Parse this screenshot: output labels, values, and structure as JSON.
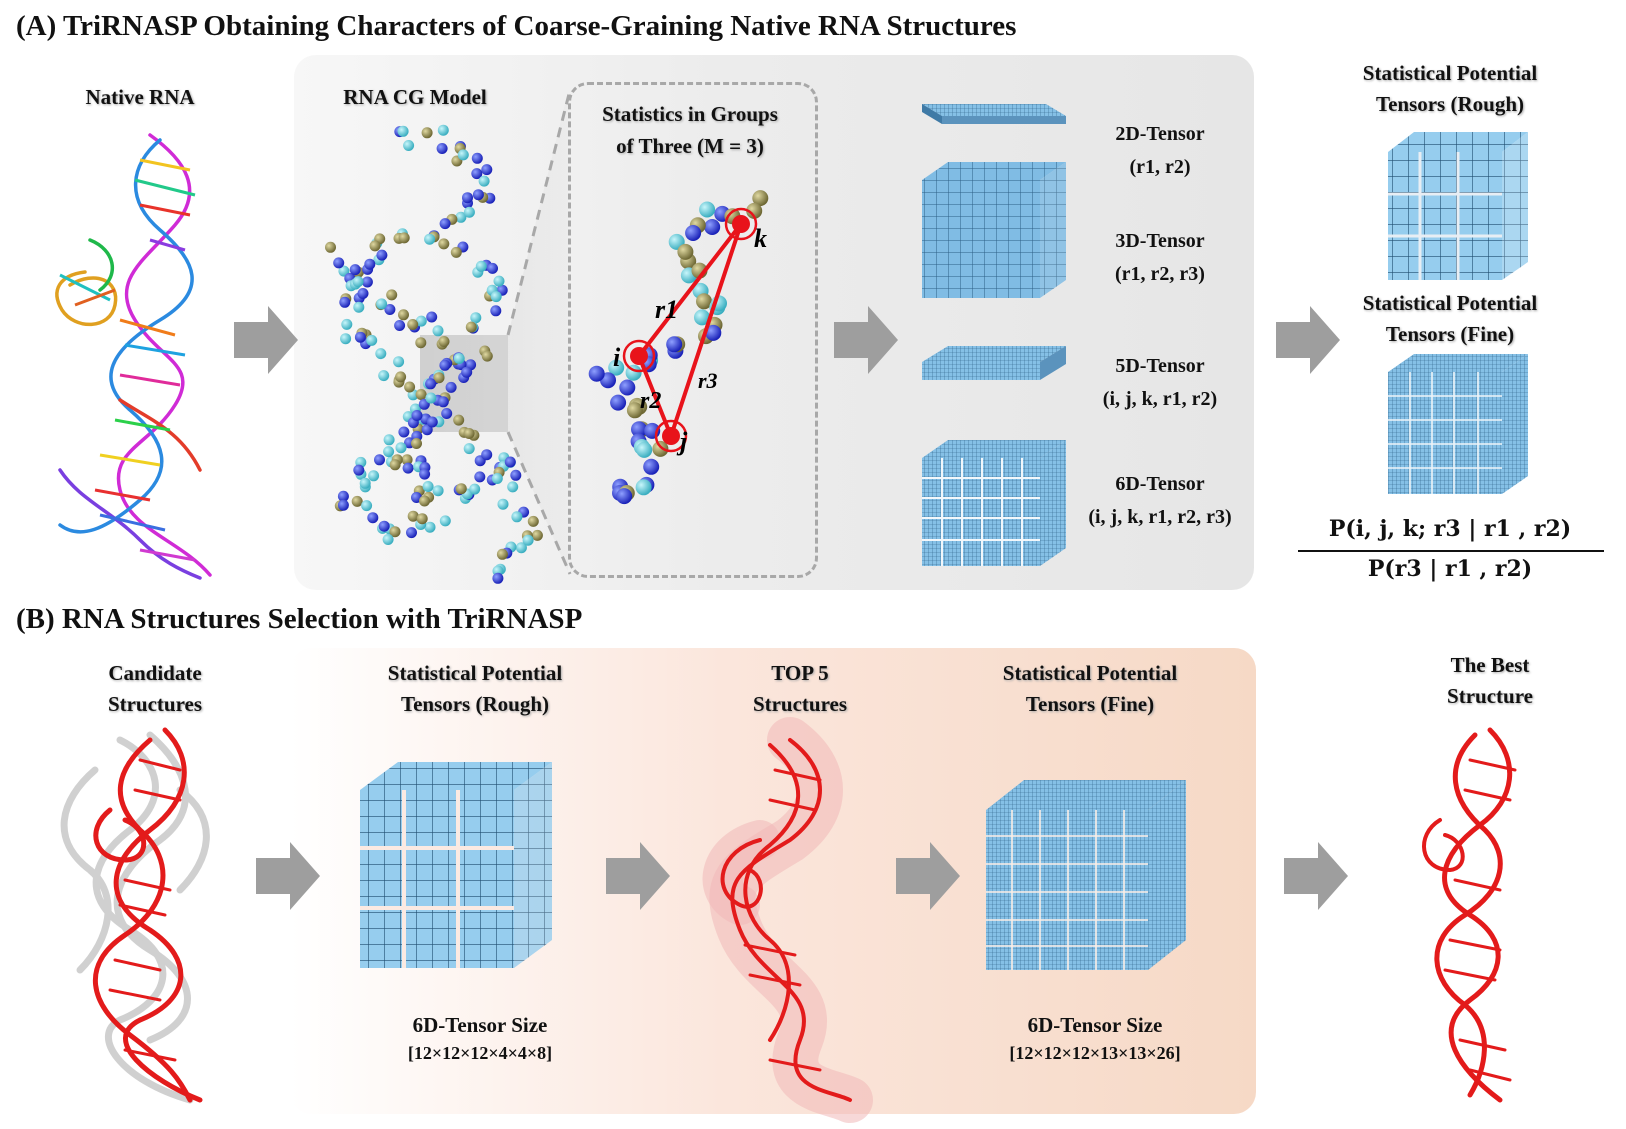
{
  "section_a": {
    "title": "(A) TriRNASP Obtaining Characters of Coarse-Graining Native RNA Structures",
    "native_rna": "Native RNA",
    "cg_model": "RNA CG Model",
    "stats_groups_line1": "Statistics in Groups",
    "stats_groups_line2": "of Three (M = 3)",
    "points": {
      "i": "i",
      "j": "j",
      "k": "k",
      "r1": "r1",
      "r2": "r2",
      "r3": "r3"
    },
    "tensors": [
      {
        "name": "2D-Tensor",
        "args": "(r1, r2)"
      },
      {
        "name": "3D-Tensor",
        "args": "(r1, r2, r3)"
      },
      {
        "name": "5D-Tensor",
        "args": "(i, j, k, r1, r2)"
      },
      {
        "name": "6D-Tensor",
        "args": "(i, j, k, r1, r2, r3)"
      }
    ],
    "rough_line1": "Statistical Potential",
    "rough_line2": "Tensors (Rough)",
    "fine_line1": "Statistical Potential",
    "fine_line2": "Tensors (Fine)",
    "formula_numerator": "P(i, j, k; r3 | r1 , r2)",
    "formula_denominator": "P(r3 | r1 , r2)"
  },
  "section_b": {
    "title": "(B) RNA Structures Selection with TriRNASP",
    "candidate_line1": "Candidate",
    "candidate_line2": "Structures",
    "rough_line1": "Statistical Potential",
    "rough_line2": "Tensors (Rough)",
    "rough_size_label": "6D-Tensor Size",
    "rough_size": "[12×12×12×4×4×8]",
    "top5_line1": "TOP 5",
    "top5_line2": "Structures",
    "fine_line1": "Statistical Potential",
    "fine_line2": "Tensors (Fine)",
    "fine_size_label": "6D-Tensor Size",
    "fine_size": "[12×12×12×13×13×26]",
    "best_line1": "The Best",
    "best_line2": "Structure"
  },
  "colors": {
    "tensor_blue": "#7fb8e0",
    "tensor_light": "#9fd0f0",
    "rna_red": "#e31b1b",
    "arrow_gray": "#9e9e9e",
    "bead_blue": "#1f2fd6",
    "bead_cyan": "#4fc6d6",
    "bead_olive": "#8c8548"
  }
}
